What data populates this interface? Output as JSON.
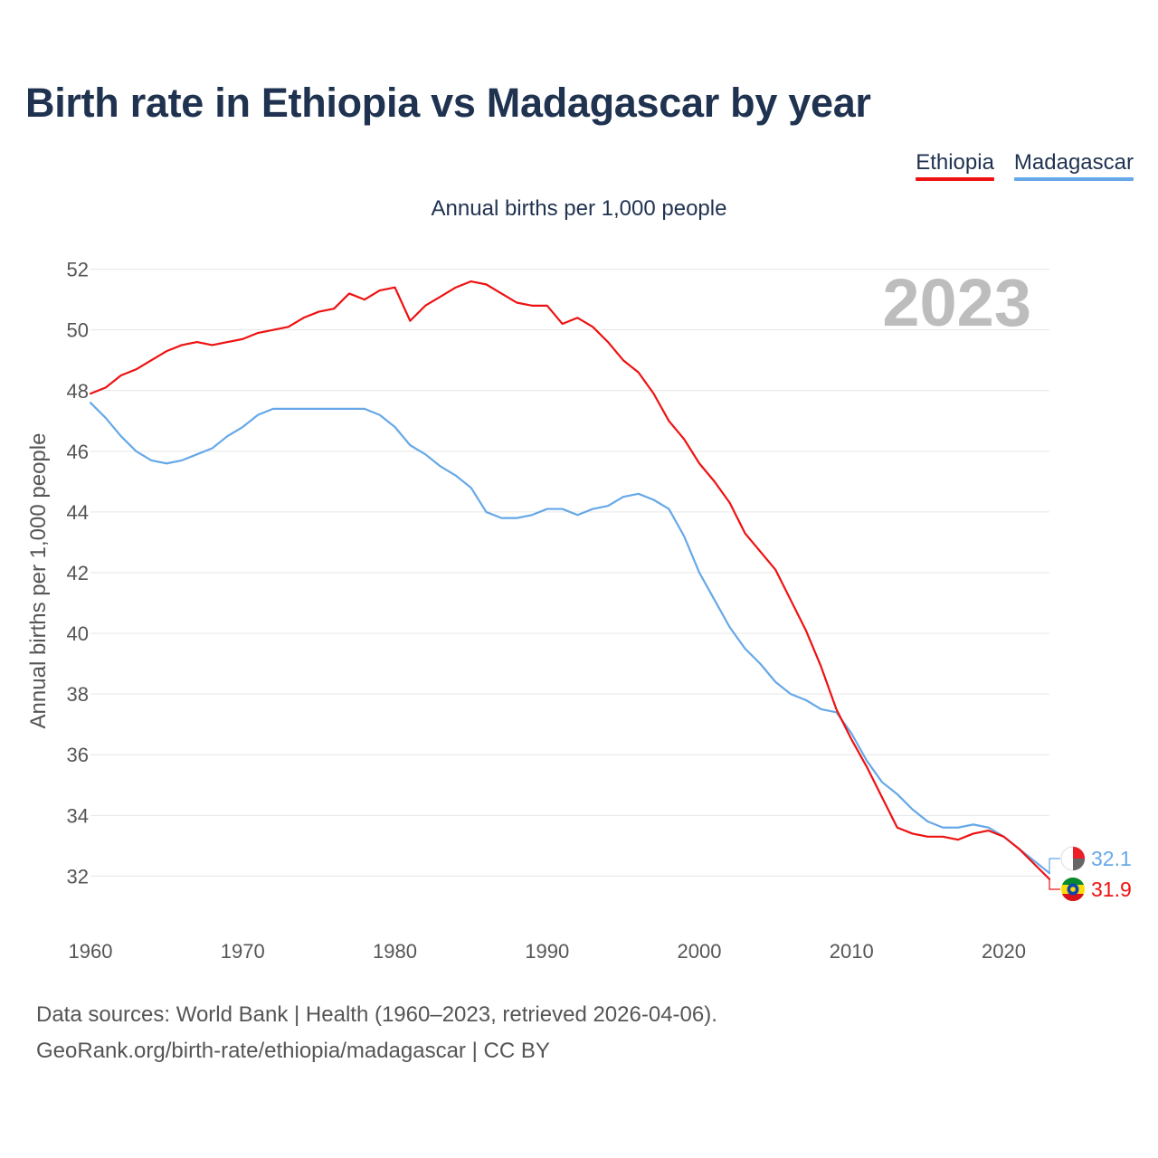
{
  "title": "Birth rate in Ethiopia vs Madagascar by year",
  "subtitle": "Annual births per 1,000 people",
  "legend": [
    {
      "label": "Ethiopia",
      "color": "#ee1111"
    },
    {
      "label": "Madagascar",
      "color": "#66a8e8"
    }
  ],
  "year_watermark": "2023",
  "footer": {
    "sources": "Data sources: World Bank | Health (1960–2023, retrieved 2026-04-06).",
    "credit": "GeoRank.org/birth-rate/ethiopia/madagascar | CC BY"
  },
  "colors": {
    "ethiopia": "#ee1111",
    "madagascar": "#66a8e8",
    "grid": "#e6e6e6",
    "axis_text": "#555555",
    "watermark": "#bdbdbd"
  },
  "chart_data": {
    "type": "line",
    "title": "Birth rate in Ethiopia vs Madagascar by year",
    "xlabel": "",
    "ylabel": "Annual births per 1,000 people",
    "xlim": [
      1960,
      2023
    ],
    "ylim": [
      31,
      52.5
    ],
    "grid": true,
    "legend_position": "top-right",
    "x_ticks": [
      "1960",
      "1970",
      "1980",
      "1990",
      "2000",
      "2010",
      "2020"
    ],
    "y_ticks": [
      "32",
      "34",
      "36",
      "38",
      "40",
      "42",
      "44",
      "46",
      "48",
      "50",
      "52"
    ],
    "x": [
      1960,
      1961,
      1962,
      1963,
      1964,
      1965,
      1966,
      1967,
      1968,
      1969,
      1970,
      1971,
      1972,
      1973,
      1974,
      1975,
      1976,
      1977,
      1978,
      1979,
      1980,
      1981,
      1982,
      1983,
      1984,
      1985,
      1986,
      1987,
      1988,
      1989,
      1990,
      1991,
      1992,
      1993,
      1994,
      1995,
      1996,
      1997,
      1998,
      1999,
      2000,
      2001,
      2002,
      2003,
      2004,
      2005,
      2006,
      2007,
      2008,
      2009,
      2010,
      2011,
      2012,
      2013,
      2014,
      2015,
      2016,
      2017,
      2018,
      2019,
      2020,
      2021,
      2022,
      2023
    ],
    "series": [
      {
        "name": "Ethiopia",
        "color": "#ee1111",
        "end_label": "31.9",
        "values": [
          47.9,
          48.1,
          48.5,
          48.7,
          49.0,
          49.3,
          49.5,
          49.6,
          49.5,
          49.6,
          49.7,
          49.9,
          50.0,
          50.1,
          50.4,
          50.6,
          50.7,
          51.2,
          51.0,
          51.3,
          51.4,
          50.3,
          50.8,
          51.1,
          51.4,
          51.6,
          51.5,
          51.2,
          50.9,
          50.8,
          50.8,
          50.2,
          50.4,
          50.1,
          49.6,
          49.0,
          48.6,
          47.9,
          47.0,
          46.4,
          45.6,
          45.0,
          44.3,
          43.3,
          42.7,
          42.1,
          41.1,
          40.1,
          38.9,
          37.5,
          36.5,
          35.6,
          34.6,
          33.6,
          33.4,
          33.3,
          33.3,
          33.2,
          33.4,
          33.5,
          33.3,
          32.9,
          32.4,
          31.9
        ]
      },
      {
        "name": "Madagascar",
        "color": "#66a8e8",
        "end_label": "32.1",
        "values": [
          47.6,
          47.1,
          46.5,
          46.0,
          45.7,
          45.6,
          45.7,
          45.9,
          46.1,
          46.5,
          46.8,
          47.2,
          47.4,
          47.4,
          47.4,
          47.4,
          47.4,
          47.4,
          47.4,
          47.2,
          46.8,
          46.2,
          45.9,
          45.5,
          45.2,
          44.8,
          44.0,
          43.8,
          43.8,
          43.9,
          44.1,
          44.1,
          43.9,
          44.1,
          44.2,
          44.5,
          44.6,
          44.4,
          44.1,
          43.2,
          42.0,
          41.1,
          40.2,
          39.5,
          39.0,
          38.4,
          38.0,
          37.8,
          37.5,
          37.4,
          36.7,
          35.8,
          35.1,
          34.7,
          34.2,
          33.8,
          33.6,
          33.6,
          33.7,
          33.6,
          33.3,
          32.9,
          32.5,
          32.1
        ]
      }
    ]
  }
}
